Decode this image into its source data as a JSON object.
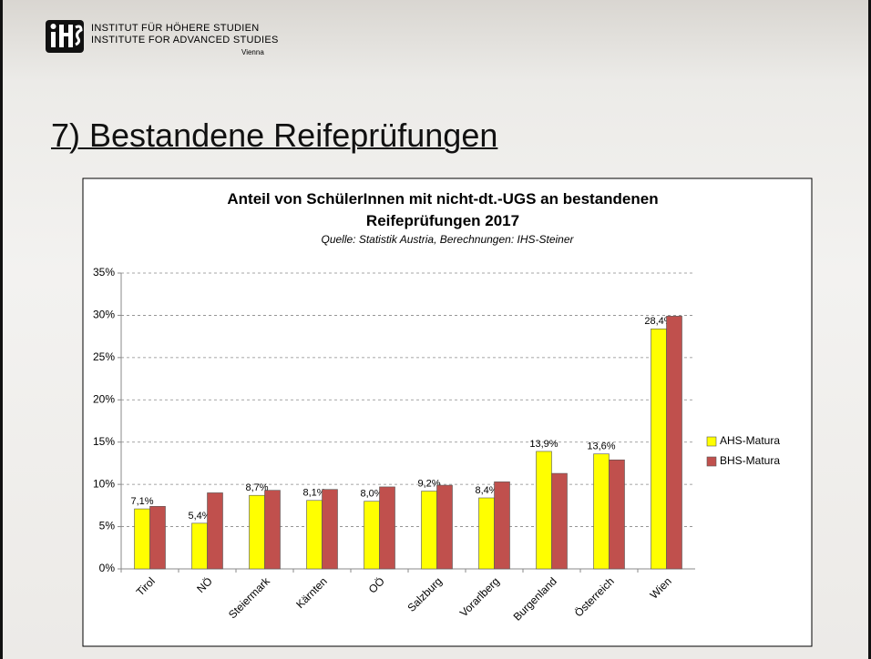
{
  "header": {
    "line1": "INSTITUT FÜR HÖHERE STUDIEN",
    "line2": "INSTITUTE FOR ADVANCED STUDIES",
    "city": "Vienna"
  },
  "slide_title": "7) Bestandene Reifeprüfungen",
  "chart_data": {
    "type": "bar",
    "title": "Anteil von SchülerInnen mit nicht-dt.-UGS an bestandenen Reifeprüfungen 2017",
    "subtitle": "Quelle: Statistik Austria, Berechnungen: IHS-Steiner",
    "categories": [
      "Tirol",
      "NÖ",
      "Steiermark",
      "Kärnten",
      "OÖ",
      "Salzburg",
      "Vorarlberg",
      "Burgenland",
      "Österreich",
      "Wien"
    ],
    "series": [
      {
        "name": "AHS-Matura",
        "color": "#ffff00",
        "values": [
          7.1,
          5.4,
          8.7,
          8.1,
          8.0,
          9.2,
          8.4,
          13.9,
          13.6,
          28.4
        ],
        "value_labels": [
          "7,1%",
          "5,4%",
          "8,7%",
          "8,1%",
          "8,0%",
          "9,2%",
          "8,4%",
          "13,9%",
          "13,6%",
          "28,4%"
        ]
      },
      {
        "name": "BHS-Matura",
        "color": "#c0504d",
        "values": [
          7.4,
          9.0,
          9.3,
          9.4,
          9.7,
          9.9,
          10.3,
          11.3,
          12.9,
          29.9
        ]
      }
    ],
    "ylim": [
      0,
      35
    ],
    "yticks": [
      {
        "value": 0,
        "label": "0%"
      },
      {
        "value": 5,
        "label": "5%"
      },
      {
        "value": 10,
        "label": "10%"
      },
      {
        "value": 15,
        "label": "15%"
      },
      {
        "value": 20,
        "label": "20%"
      },
      {
        "value": 25,
        "label": "25%"
      },
      {
        "value": 30,
        "label": "30%"
      },
      {
        "value": 35,
        "label": "35%"
      }
    ],
    "grid": true,
    "legend": "right"
  }
}
